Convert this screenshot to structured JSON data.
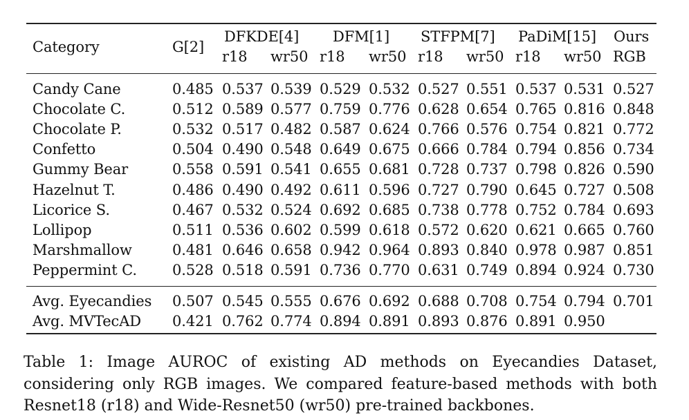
{
  "table": {
    "header": {
      "category": "Category",
      "groups": [
        {
          "name": "G[2]",
          "subs": []
        },
        {
          "name": "DFKDE[4]",
          "subs": [
            "r18",
            "wr50"
          ]
        },
        {
          "name": "DFM[1]",
          "subs": [
            "r18",
            "wr50"
          ]
        },
        {
          "name": "STFPM[7]",
          "subs": [
            "r18",
            "wr50"
          ]
        },
        {
          "name": "PaDiM[15]",
          "subs": [
            "r18",
            "wr50"
          ]
        },
        {
          "name": "Ours",
          "subs": [
            "RGB"
          ]
        }
      ]
    },
    "rows": [
      {
        "category": "Candy Cane",
        "values": [
          "0.485",
          "0.537",
          "0.539",
          "0.529",
          "0.532",
          "0.527",
          "0.551",
          "0.537",
          "0.531",
          "0.527"
        ]
      },
      {
        "category": "Chocolate C.",
        "values": [
          "0.512",
          "0.589",
          "0.577",
          "0.759",
          "0.776",
          "0.628",
          "0.654",
          "0.765",
          "0.816",
          "0.848"
        ]
      },
      {
        "category": "Chocolate P.",
        "values": [
          "0.532",
          "0.517",
          "0.482",
          "0.587",
          "0.624",
          "0.766",
          "0.576",
          "0.754",
          "0.821",
          "0.772"
        ]
      },
      {
        "category": "Confetto",
        "values": [
          "0.504",
          "0.490",
          "0.548",
          "0.649",
          "0.675",
          "0.666",
          "0.784",
          "0.794",
          "0.856",
          "0.734"
        ]
      },
      {
        "category": "Gummy Bear",
        "values": [
          "0.558",
          "0.591",
          "0.541",
          "0.655",
          "0.681",
          "0.728",
          "0.737",
          "0.798",
          "0.826",
          "0.590"
        ]
      },
      {
        "category": "Hazelnut T.",
        "values": [
          "0.486",
          "0.490",
          "0.492",
          "0.611",
          "0.596",
          "0.727",
          "0.790",
          "0.645",
          "0.727",
          "0.508"
        ]
      },
      {
        "category": "Licorice S.",
        "values": [
          "0.467",
          "0.532",
          "0.524",
          "0.692",
          "0.685",
          "0.738",
          "0.778",
          "0.752",
          "0.784",
          "0.693"
        ]
      },
      {
        "category": "Lollipop",
        "values": [
          "0.511",
          "0.536",
          "0.602",
          "0.599",
          "0.618",
          "0.572",
          "0.620",
          "0.621",
          "0.665",
          "0.760"
        ]
      },
      {
        "category": "Marshmallow",
        "values": [
          "0.481",
          "0.646",
          "0.658",
          "0.942",
          "0.964",
          "0.893",
          "0.840",
          "0.978",
          "0.987",
          "0.851"
        ]
      },
      {
        "category": "Peppermint C.",
        "values": [
          "0.528",
          "0.518",
          "0.591",
          "0.736",
          "0.770",
          "0.631",
          "0.749",
          "0.894",
          "0.924",
          "0.730"
        ]
      }
    ],
    "avg_rows": [
      {
        "category": "Avg. Eyecandies",
        "values": [
          "0.507",
          "0.545",
          "0.555",
          "0.676",
          "0.692",
          "0.688",
          "0.708",
          "0.754",
          "0.794",
          "0.701"
        ]
      },
      {
        "category": "Avg. MVTecAD",
        "values": [
          "0.421",
          "0.762",
          "0.774",
          "0.894",
          "0.891",
          "0.893",
          "0.876",
          "0.891",
          "0.950",
          ""
        ]
      }
    ]
  },
  "caption": "Table 1: Image AUROC of existing AD methods on Eyecandies Dataset, considering only RGB images. We compared feature-based methods with both Resnet18 (r18) and Wide-Resnet50 (wr50) pre-trained backbones."
}
